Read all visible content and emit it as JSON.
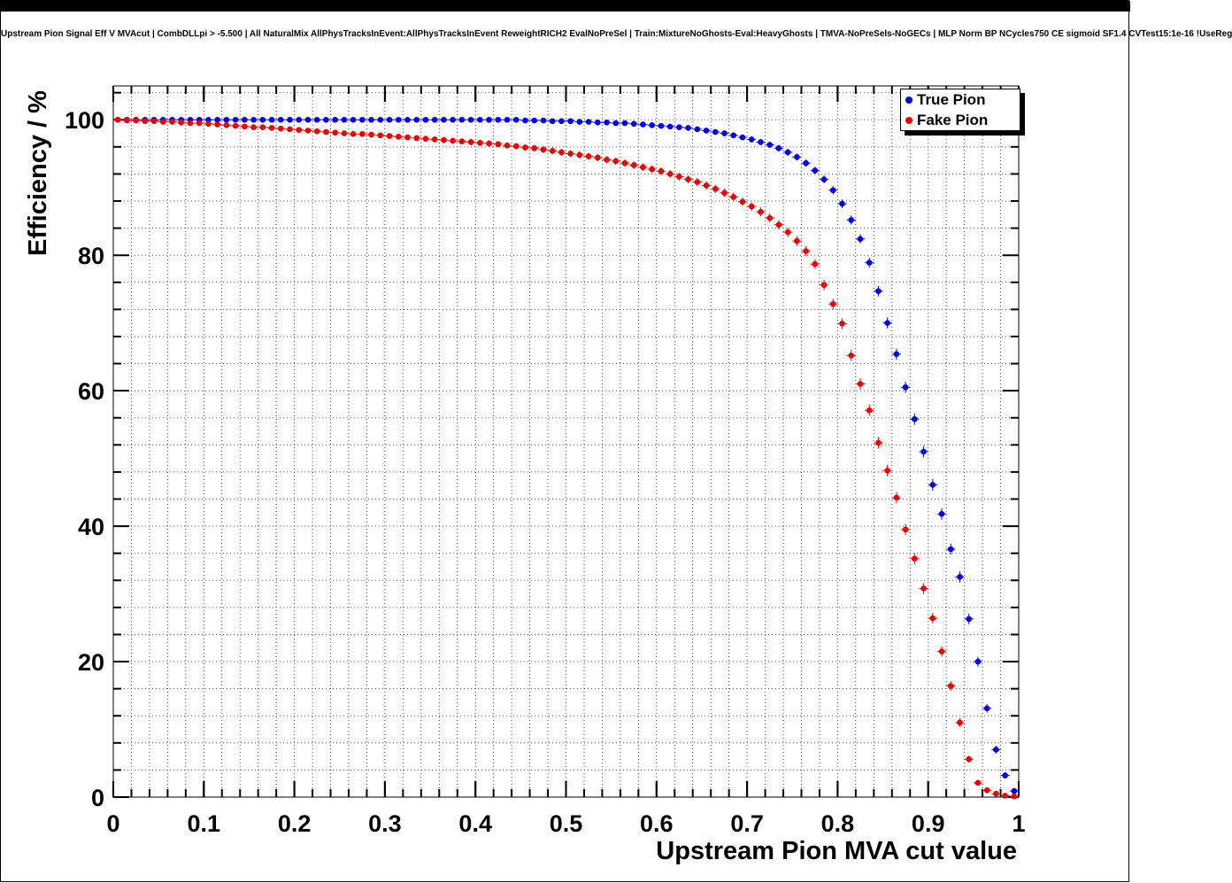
{
  "title": "Upstream Pion Signal Eff V MVAcut | CombDLLpi > -5.500 | All NaturalMix AllPhysTracksInEvent:AllPhysTracksInEvent ReweightRICH2 EvalNoPreSel | Train:MixtureNoGhosts-Eval:HeavyGhosts | TMVA-NoPreSels-NoGECs | MLP Norm BP NCycles750 CE sigmoid SF1.4 CVTest15:1e-16 !UseReg",
  "legend": {
    "position": "top-right",
    "items": [
      {
        "label": "True Pion",
        "color": "#0000ee"
      },
      {
        "label": "Fake Pion",
        "color": "#ee0000"
      }
    ]
  },
  "chart_data": {
    "type": "scatter",
    "title": "Upstream Pion Signal Eff V MVAcut | CombDLLpi > -5.500 | All NaturalMix AllPhysTracksInEvent:AllPhysTracksInEvent ReweightRICH2 EvalNoPreSel | Train:MixtureNoGhosts-Eval:HeavyGhosts | TMVA-NoPreSels-NoGECs | MLP Norm BP NCycles750 CE sigmoid SF1.4 CVTest15:1e-16 !UseReg",
    "xlabel": "Upstream Pion MVA cut value",
    "ylabel": "Efficiency / %",
    "xlim": [
      0,
      1
    ],
    "ylim": [
      0,
      105
    ],
    "grid": "dotted-minor-and-major",
    "x_ticks": [
      0,
      0.1,
      0.2,
      0.3,
      0.4,
      0.5,
      0.6,
      0.7,
      0.8,
      0.9,
      1
    ],
    "x_tick_labels": [
      "0",
      "0.1",
      "0.2",
      "0.3",
      "0.4",
      "0.5",
      "0.6",
      "0.7",
      "0.8",
      "0.9",
      "1"
    ],
    "y_ticks": [
      0,
      20,
      40,
      60,
      80,
      100
    ],
    "y_tick_labels": [
      "0",
      "20",
      "40",
      "60",
      "80",
      "100"
    ],
    "x_minor_step": 0.02,
    "y_minor_step": 4,
    "marker": "filled-circle",
    "x": [
      0.005,
      0.015,
      0.025,
      0.035,
      0.045,
      0.055,
      0.065,
      0.075,
      0.085,
      0.095,
      0.105,
      0.115,
      0.125,
      0.135,
      0.145,
      0.155,
      0.165,
      0.175,
      0.185,
      0.195,
      0.205,
      0.215,
      0.225,
      0.235,
      0.245,
      0.255,
      0.265,
      0.275,
      0.285,
      0.295,
      0.305,
      0.315,
      0.325,
      0.335,
      0.345,
      0.355,
      0.365,
      0.375,
      0.385,
      0.395,
      0.405,
      0.415,
      0.425,
      0.435,
      0.445,
      0.455,
      0.465,
      0.475,
      0.485,
      0.495,
      0.505,
      0.515,
      0.525,
      0.535,
      0.545,
      0.555,
      0.565,
      0.575,
      0.585,
      0.595,
      0.605,
      0.615,
      0.625,
      0.635,
      0.645,
      0.655,
      0.665,
      0.675,
      0.685,
      0.695,
      0.705,
      0.715,
      0.725,
      0.735,
      0.745,
      0.755,
      0.765,
      0.775,
      0.785,
      0.795,
      0.805,
      0.815,
      0.825,
      0.835,
      0.845,
      0.855,
      0.865,
      0.875,
      0.885,
      0.895,
      0.905,
      0.915,
      0.925,
      0.935,
      0.945,
      0.955,
      0.965,
      0.975,
      0.985,
      0.995
    ],
    "series": [
      {
        "name": "True Pion",
        "color": "#0000ee",
        "y": [
          100,
          100,
          100,
          100,
          100,
          100,
          100,
          100,
          100,
          100,
          100,
          100,
          100,
          100,
          100,
          100,
          100,
          100,
          100,
          100,
          100,
          100,
          100,
          100,
          100,
          100,
          100,
          100,
          100,
          100,
          100,
          100,
          100,
          100,
          100,
          100,
          100,
          100,
          100,
          100,
          100,
          100,
          100,
          100,
          100,
          99.9,
          99.9,
          99.9,
          99.8,
          99.8,
          99.8,
          99.7,
          99.7,
          99.6,
          99.6,
          99.5,
          99.5,
          99.4,
          99.3,
          99.2,
          99.1,
          99.0,
          98.9,
          98.8,
          98.6,
          98.4,
          98.2,
          98.0,
          97.7,
          97.4,
          97.1,
          96.7,
          96.3,
          95.8,
          95.2,
          94.5,
          93.6,
          92.5,
          91.2,
          89.6,
          87.6,
          85.2,
          82.4,
          78.9,
          74.7,
          70.0,
          65.4,
          60.5,
          55.8,
          51.0,
          46.1,
          41.8,
          36.6,
          32.5,
          26.3,
          20.0,
          13.1,
          7.0,
          3.2,
          0.9
        ]
      },
      {
        "name": "Fake Pion",
        "color": "#ee0000",
        "y": [
          100,
          99.9,
          99.9,
          99.8,
          99.8,
          99.7,
          99.7,
          99.6,
          99.5,
          99.5,
          99.4,
          99.3,
          99.2,
          99.1,
          99.0,
          98.9,
          98.9,
          98.8,
          98.7,
          98.6,
          98.5,
          98.4,
          98.3,
          98.2,
          98.1,
          98.0,
          97.9,
          97.9,
          97.8,
          97.7,
          97.6,
          97.5,
          97.4,
          97.3,
          97.2,
          97.1,
          97.0,
          96.9,
          96.8,
          96.7,
          96.6,
          96.5,
          96.4,
          96.2,
          96.1,
          95.9,
          95.8,
          95.6,
          95.4,
          95.2,
          95.0,
          94.8,
          94.6,
          94.4,
          94.1,
          93.9,
          93.6,
          93.3,
          93.0,
          92.7,
          92.4,
          92.0,
          91.6,
          91.2,
          90.8,
          90.3,
          89.8,
          89.2,
          88.6,
          87.9,
          87.2,
          86.4,
          85.5,
          84.5,
          83.4,
          82.1,
          80.6,
          78.7,
          75.6,
          72.8,
          69.9,
          65.2,
          61.0,
          57.1,
          52.3,
          48.2,
          44.2,
          39.5,
          35.2,
          30.8,
          26.4,
          21.5,
          16.4,
          11.0,
          5.6,
          2.1,
          1.0,
          0.5,
          0.2,
          0.1
        ]
      }
    ]
  }
}
